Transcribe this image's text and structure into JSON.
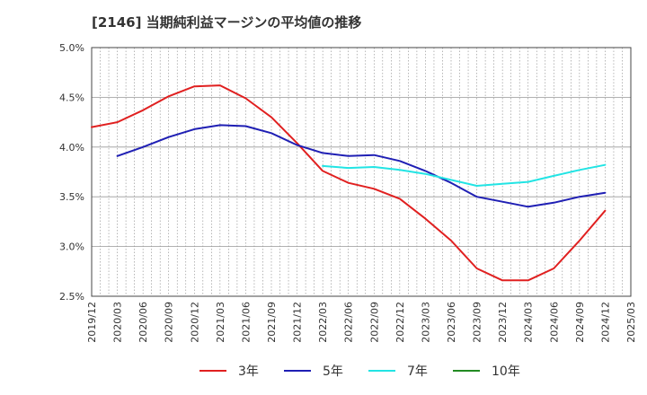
{
  "chart_data": {
    "type": "line",
    "title": "[2146]  当期純利益マージンの平均値の推移",
    "xlabel": "",
    "ylabel": "",
    "ylim": [
      0.025,
      0.05
    ],
    "y_ticks": [
      "5.0%",
      "4.5%",
      "4.0%",
      "3.5%",
      "3.0%",
      "2.5%"
    ],
    "y_tick_values": [
      0.05,
      0.045,
      0.04,
      0.035,
      0.03,
      0.025
    ],
    "x_ticks": [
      "2019/12",
      "2020/03",
      "2020/06",
      "2020/09",
      "2020/12",
      "2021/03",
      "2021/06",
      "2021/09",
      "2021/12",
      "2022/03",
      "2022/06",
      "2022/09",
      "2022/12",
      "2023/03",
      "2023/06",
      "2023/09",
      "2023/12",
      "2024/03",
      "2024/06",
      "2024/09",
      "2024/12",
      "2025/03"
    ],
    "grid": true,
    "legend_position": "bottom",
    "series": [
      {
        "name": "3年",
        "color": "#e02020",
        "points": [
          [
            "2019/12",
            0.042
          ],
          [
            "2020/03",
            0.0425
          ],
          [
            "2020/06",
            0.0437
          ],
          [
            "2020/09",
            0.0451
          ],
          [
            "2020/12",
            0.0461
          ],
          [
            "2021/03",
            0.0462
          ],
          [
            "2021/06",
            0.0449
          ],
          [
            "2021/09",
            0.043
          ],
          [
            "2021/12",
            0.0404
          ],
          [
            "2022/03",
            0.0376
          ],
          [
            "2022/06",
            0.0364
          ],
          [
            "2022/09",
            0.0358
          ],
          [
            "2022/12",
            0.0348
          ],
          [
            "2023/03",
            0.0328
          ],
          [
            "2023/06",
            0.0306
          ],
          [
            "2023/09",
            0.0278
          ],
          [
            "2023/12",
            0.0266
          ],
          [
            "2024/03",
            0.0266
          ],
          [
            "2024/06",
            0.0278
          ],
          [
            "2024/09",
            0.0306
          ],
          [
            "2024/12",
            0.0336
          ]
        ]
      },
      {
        "name": "5年",
        "color": "#1f1fb4",
        "points": [
          [
            "2020/03",
            0.0391
          ],
          [
            "2020/06",
            0.04
          ],
          [
            "2020/09",
            0.041
          ],
          [
            "2020/12",
            0.0418
          ],
          [
            "2021/03",
            0.0422
          ],
          [
            "2021/06",
            0.0421
          ],
          [
            "2021/09",
            0.0414
          ],
          [
            "2021/12",
            0.0402
          ],
          [
            "2022/03",
            0.0394
          ],
          [
            "2022/06",
            0.0391
          ],
          [
            "2022/09",
            0.0392
          ],
          [
            "2022/12",
            0.0386
          ],
          [
            "2023/03",
            0.0376
          ],
          [
            "2023/06",
            0.0364
          ],
          [
            "2023/09",
            0.035
          ],
          [
            "2023/12",
            0.0345
          ],
          [
            "2024/03",
            0.034
          ],
          [
            "2024/06",
            0.0344
          ],
          [
            "2024/09",
            0.035
          ],
          [
            "2024/12",
            0.0354
          ]
        ]
      },
      {
        "name": "7年",
        "color": "#22e4e4",
        "points": [
          [
            "2022/03",
            0.0381
          ],
          [
            "2022/06",
            0.0379
          ],
          [
            "2022/09",
            0.038
          ],
          [
            "2022/12",
            0.0377
          ],
          [
            "2023/03",
            0.0373
          ],
          [
            "2023/06",
            0.0367
          ],
          [
            "2023/09",
            0.0361
          ],
          [
            "2023/12",
            0.0363
          ],
          [
            "2024/03",
            0.0365
          ],
          [
            "2024/06",
            0.0371
          ],
          [
            "2024/09",
            0.0377
          ],
          [
            "2024/12",
            0.0382
          ]
        ]
      },
      {
        "name": "10年",
        "color": "#228b22",
        "points": []
      }
    ]
  }
}
